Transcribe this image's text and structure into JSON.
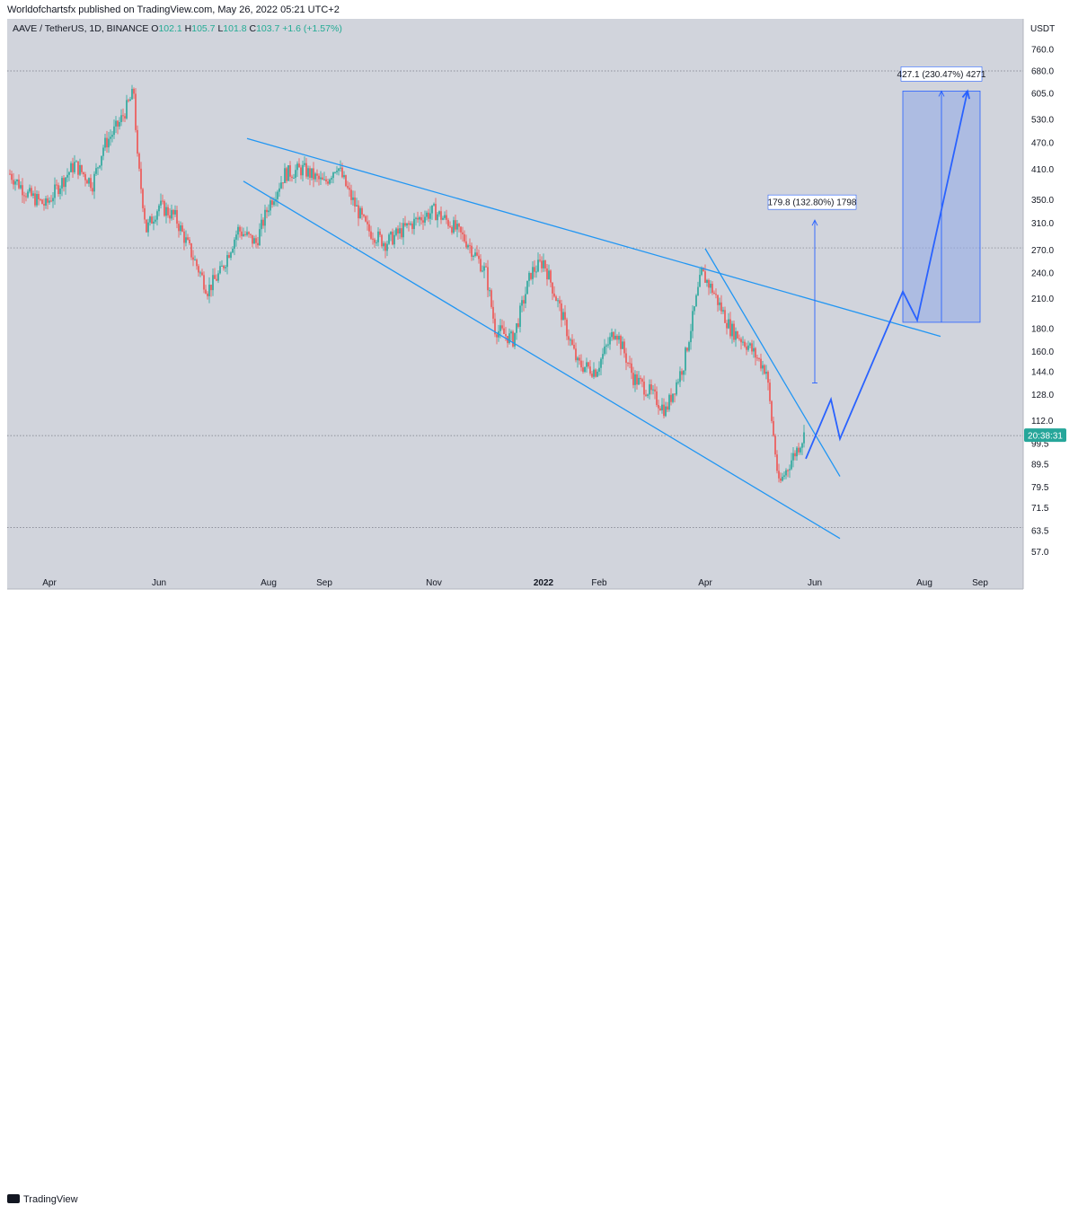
{
  "header": {
    "publisher_line": "Worldofchartsfx published on TradingView.com, May 26, 2022 05:21 UTC+2"
  },
  "legend": {
    "symbol": "AAVE / TetherUS, 1D, BINANCE",
    "open_key": "O",
    "open": "102.1",
    "high_key": "H",
    "high": "105.7",
    "low_key": "L",
    "low": "101.8",
    "close_key": "C",
    "close": "103.7",
    "change": "+1.6 (+1.57%)"
  },
  "axis_unit": "USDT",
  "countdown": "20:38:31",
  "footer": {
    "logo": "TradingView"
  },
  "colors": {
    "up": "#26a69a",
    "down": "#ef5350",
    "trendline": "#2196f3",
    "projection": "#2962ff",
    "measure_fill": "#90a8e8",
    "background": "#d1d4dc"
  },
  "chart_data": {
    "type": "candlestick",
    "symbol": "AAVE / TetherUS",
    "interval": "1D",
    "exchange": "BINANCE",
    "y_scale": "log",
    "ylim": [
      52,
      900
    ],
    "y_ticks": [
      "760.0",
      "680.0",
      "605.0",
      "530.0",
      "470.0",
      "410.0",
      "350.0",
      "310.0",
      "270.0",
      "240.0",
      "210.0",
      "180.0",
      "160.0",
      "144.0",
      "128.0",
      "112.0",
      "99.5",
      "89.5",
      "79.5",
      "71.5",
      "63.5",
      "57.0"
    ],
    "x_ticks": [
      {
        "label": "Apr",
        "date": "2021-04-01"
      },
      {
        "label": "Jun",
        "date": "2021-06-01"
      },
      {
        "label": "Aug",
        "date": "2021-08-01"
      },
      {
        "label": "Sep",
        "date": "2021-09-01"
      },
      {
        "label": "Nov",
        "date": "2021-11-01"
      },
      {
        "label": "2022",
        "date": "2022-01-01"
      },
      {
        "label": "Feb",
        "date": "2022-02-01"
      },
      {
        "label": "Apr",
        "date": "2022-04-01"
      },
      {
        "label": "Jun",
        "date": "2022-06-01"
      },
      {
        "label": "Aug",
        "date": "2022-08-01"
      },
      {
        "label": "Sep",
        "date": "2022-09-01"
      }
    ],
    "price_path": [
      {
        "date": "2021-03-10",
        "price": 400
      },
      {
        "date": "2021-03-20",
        "price": 360
      },
      {
        "date": "2021-03-30",
        "price": 340
      },
      {
        "date": "2021-04-05",
        "price": 370
      },
      {
        "date": "2021-04-15",
        "price": 420
      },
      {
        "date": "2021-04-25",
        "price": 380
      },
      {
        "date": "2021-05-01",
        "price": 460
      },
      {
        "date": "2021-05-10",
        "price": 520
      },
      {
        "date": "2021-05-18",
        "price": 610
      },
      {
        "date": "2021-05-20",
        "price": 430
      },
      {
        "date": "2021-05-25",
        "price": 300
      },
      {
        "date": "2021-06-01",
        "price": 340
      },
      {
        "date": "2021-06-10",
        "price": 320
      },
      {
        "date": "2021-06-20",
        "price": 260
      },
      {
        "date": "2021-06-28",
        "price": 220
      },
      {
        "date": "2021-07-05",
        "price": 240
      },
      {
        "date": "2021-07-15",
        "price": 300
      },
      {
        "date": "2021-07-25",
        "price": 280
      },
      {
        "date": "2021-08-01",
        "price": 340
      },
      {
        "date": "2021-08-10",
        "price": 400
      },
      {
        "date": "2021-08-20",
        "price": 410
      },
      {
        "date": "2021-09-01",
        "price": 380
      },
      {
        "date": "2021-09-08",
        "price": 420
      },
      {
        "date": "2021-09-15",
        "price": 360
      },
      {
        "date": "2021-09-25",
        "price": 300
      },
      {
        "date": "2021-10-05",
        "price": 280
      },
      {
        "date": "2021-10-15",
        "price": 300
      },
      {
        "date": "2021-10-25",
        "price": 320
      },
      {
        "date": "2021-11-01",
        "price": 330
      },
      {
        "date": "2021-11-10",
        "price": 310
      },
      {
        "date": "2021-11-20",
        "price": 280
      },
      {
        "date": "2021-11-30",
        "price": 240
      },
      {
        "date": "2021-12-05",
        "price": 180
      },
      {
        "date": "2021-12-15",
        "price": 170
      },
      {
        "date": "2021-12-25",
        "price": 240
      },
      {
        "date": "2022-01-01",
        "price": 255
      },
      {
        "date": "2022-01-10",
        "price": 200
      },
      {
        "date": "2022-01-20",
        "price": 150
      },
      {
        "date": "2022-01-30",
        "price": 145
      },
      {
        "date": "2022-02-10",
        "price": 180
      },
      {
        "date": "2022-02-20",
        "price": 140
      },
      {
        "date": "2022-03-01",
        "price": 130
      },
      {
        "date": "2022-03-10",
        "price": 118
      },
      {
        "date": "2022-03-20",
        "price": 150
      },
      {
        "date": "2022-03-30",
        "price": 240
      },
      {
        "date": "2022-04-05",
        "price": 220
      },
      {
        "date": "2022-04-15",
        "price": 180
      },
      {
        "date": "2022-04-25",
        "price": 165
      },
      {
        "date": "2022-05-05",
        "price": 145
      },
      {
        "date": "2022-05-10",
        "price": 95
      },
      {
        "date": "2022-05-12",
        "price": 80
      },
      {
        "date": "2022-05-18",
        "price": 90
      },
      {
        "date": "2022-05-26",
        "price": 103.7
      }
    ],
    "drawings": {
      "wedge_upper": [
        {
          "date": "2021-07-20",
          "price": 480
        },
        {
          "date": "2022-08-10",
          "price": 173
        }
      ],
      "wedge_lower": [
        {
          "date": "2021-07-18",
          "price": 385
        },
        {
          "date": "2022-06-15",
          "price": 61
        }
      ],
      "steep_downtrend": [
        {
          "date": "2022-04-01",
          "price": 272
        },
        {
          "date": "2022-06-15",
          "price": 84
        }
      ],
      "projection_path": [
        {
          "date": "2022-05-27",
          "price": 92
        },
        {
          "date": "2022-06-10",
          "price": 125
        },
        {
          "date": "2022-06-15",
          "price": 102
        },
        {
          "date": "2022-07-20",
          "price": 218
        },
        {
          "date": "2022-07-28",
          "price": 188
        },
        {
          "date": "2022-08-25",
          "price": 613
        }
      ],
      "measure_small": {
        "date": "2022-06-01",
        "from": 136,
        "to": 315,
        "label": "179.8 (132.80%) 1798"
      },
      "measure_large": {
        "from_date": "2022-07-20",
        "to_date": "2022-09-01",
        "from": 186,
        "to": 613,
        "label": "427.1 (230.47%) 4271"
      },
      "horizontal_levels": [
        680,
        273,
        103.7,
        64.5
      ]
    }
  }
}
